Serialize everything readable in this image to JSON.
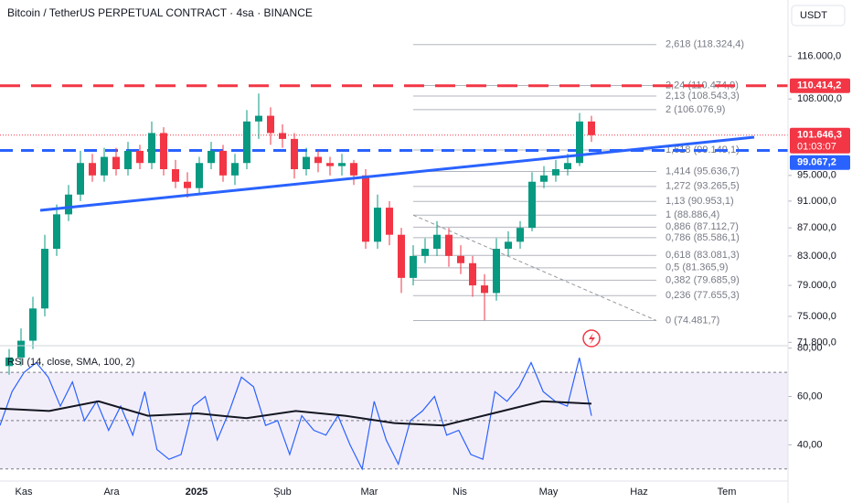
{
  "header": {
    "title": "Bitcoin / TetherUS PERPETUAL CONTRACT · 4sa · BINANCE",
    "currency": "USDT"
  },
  "chart_data": [
    {
      "type": "candlestick",
      "ylim": [
        71400,
        127500
      ],
      "log_scale": true,
      "yticks": [
        {
          "value": 116000,
          "label": "116.000,0"
        },
        {
          "value": 108000,
          "label": "108.000,0"
        },
        {
          "value": 95000,
          "label": "95.000,0"
        },
        {
          "value": 91000,
          "label": "91.000,0"
        },
        {
          "value": 87000,
          "label": "87.000,0"
        },
        {
          "value": 83000,
          "label": "83.000,0"
        },
        {
          "value": 79000,
          "label": "79.000,0"
        },
        {
          "value": 75000,
          "label": "75.000,0"
        },
        {
          "value": 71800,
          "label": "71.800,0"
        }
      ],
      "categories": [
        "Kas",
        "Ara",
        "2025",
        "Şub",
        "Mar",
        "Nis",
        "May",
        "Haz",
        "Tem"
      ],
      "up_color": "#089981",
      "down_color": "#f23645",
      "open": [
        69000,
        70000,
        72000,
        76000,
        84000,
        89000,
        92000,
        97000,
        95000,
        98000,
        96000,
        99000,
        97000,
        102000,
        96000,
        94000,
        93000,
        97000,
        99000,
        95000,
        97000,
        104000,
        105000,
        102000,
        101000,
        96000,
        98000,
        97000,
        96500,
        97000,
        95000,
        85000,
        90000,
        86000,
        80000,
        83000,
        84000,
        86000,
        83000,
        82000,
        79000,
        78000,
        84000,
        85000,
        87000,
        94000,
        95000,
        96000,
        97000,
        104000
      ],
      "high": [
        71000,
        73500,
        77500,
        86000,
        90500,
        93500,
        99000,
        98500,
        99500,
        99500,
        100500,
        100000,
        104000,
        103000,
        97500,
        95500,
        98000,
        100500,
        100000,
        98500,
        106000,
        109000,
        106500,
        103500,
        102000,
        99500,
        99000,
        98000,
        98500,
        97500,
        96000,
        92000,
        91000,
        87000,
        84500,
        85500,
        88000,
        87000,
        84500,
        83000,
        80500,
        85500,
        86500,
        88000,
        95500,
        96500,
        97500,
        98500,
        105500,
        105000
      ],
      "low": [
        68000,
        69000,
        71000,
        75000,
        83000,
        88000,
        91000,
        94000,
        94000,
        95000,
        95000,
        96000,
        96000,
        95000,
        93000,
        91500,
        92000,
        96000,
        94000,
        93500,
        96000,
        101000,
        100000,
        99500,
        94500,
        95000,
        95500,
        95000,
        95000,
        93500,
        84000,
        84000,
        84500,
        78000,
        79000,
        82000,
        83000,
        81500,
        80500,
        77500,
        74500,
        77000,
        83000,
        84000,
        86500,
        93000,
        94000,
        95000,
        96500,
        100500
      ],
      "close": [
        70000,
        72000,
        76000,
        84000,
        89000,
        92000,
        97000,
        95000,
        98000,
        96000,
        99000,
        97000,
        102000,
        96000,
        94000,
        93000,
        97000,
        99000,
        95000,
        97000,
        104000,
        105000,
        102000,
        101000,
        96000,
        98000,
        97000,
        96500,
        97000,
        95000,
        85000,
        90000,
        86000,
        80000,
        83000,
        84000,
        86000,
        83000,
        82000,
        79000,
        78000,
        84000,
        85000,
        87000,
        94000,
        95000,
        96000,
        97000,
        104000,
        101646.3
      ],
      "resistance": {
        "value": 110414.2,
        "label": "110.414,2",
        "color": "#f23645"
      },
      "support": {
        "value": 99067.2,
        "label": "99.067,2",
        "color": "#2962ff"
      },
      "last_price": {
        "value": 101646.3,
        "label": "101.646,3",
        "countdown": "01:03:07"
      },
      "fib_levels": [
        {
          "value": 118324.4,
          "label": "2,618 (118.324,4)"
        },
        {
          "value": 110474.9,
          "label": "2,24 (110.474,9)"
        },
        {
          "value": 108543.3,
          "label": "2,13 (108.543,3)"
        },
        {
          "value": 106076.9,
          "label": "2 (106.076,9)"
        },
        {
          "value": 99149.1,
          "label": "1,618 (99.149,1)"
        },
        {
          "value": 95636.7,
          "label": "1,414 (95.636,7)"
        },
        {
          "value": 93265.5,
          "label": "1,272 (93.265,5)"
        },
        {
          "value": 90953.1,
          "label": "1,13 (90.953,1)"
        },
        {
          "value": 88886.4,
          "label": "1 (88.886,4)"
        },
        {
          "value": 87112.7,
          "label": "0,886 (87.112,7)"
        },
        {
          "value": 85586.1,
          "label": "0,786 (85.586,1)"
        },
        {
          "value": 83081.3,
          "label": "0,618 (83.081,3)"
        },
        {
          "value": 81365.9,
          "label": "0,5 (81.365,9)"
        },
        {
          "value": 79685.9,
          "label": "0,382 (79.685,9)"
        },
        {
          "value": 77655.3,
          "label": "0,236 (77.655,3)"
        },
        {
          "value": 74481.7,
          "label": "0 (74.481,7)"
        }
      ]
    },
    {
      "type": "line",
      "title": "RSI (14, close, SMA, 100, 2)",
      "ylim": [
        25,
        81
      ],
      "yticks": [
        {
          "value": 80,
          "label": "80,00"
        },
        {
          "value": 60,
          "label": "60,00"
        },
        {
          "value": 40,
          "label": "40,00"
        }
      ],
      "bands": [
        70,
        50,
        30
      ],
      "series": [
        {
          "name": "RSI",
          "color": "#2962ff",
          "values": [
            48,
            62,
            70,
            74,
            68,
            56,
            66,
            50,
            58,
            46,
            56,
            44,
            62,
            38,
            34,
            36,
            56,
            60,
            42,
            54,
            68,
            64,
            48,
            50,
            36,
            52,
            46,
            44,
            52,
            40,
            30,
            58,
            42,
            32,
            50,
            54,
            60,
            44,
            46,
            36,
            34,
            62,
            58,
            64,
            74,
            62,
            58,
            56,
            76,
            52
          ]
        },
        {
          "name": "SMA",
          "color": "#131722",
          "values": [
            55,
            54,
            58,
            52,
            53,
            51,
            54,
            52,
            49,
            48,
            53,
            58,
            57
          ]
        }
      ]
    }
  ]
}
